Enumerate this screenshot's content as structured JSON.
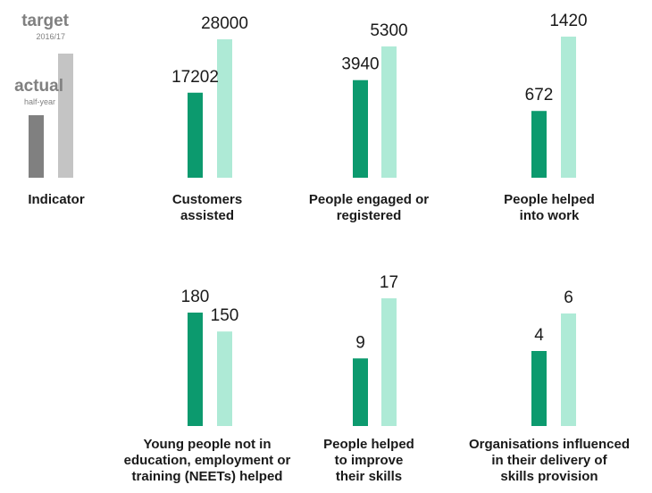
{
  "legend": {
    "actual_label": "actual",
    "actual_sub": "half-year",
    "target_label": "target",
    "target_sub": "2016/17",
    "indicator_label": "Indicator"
  },
  "colors": {
    "actual": "#0c9a6e",
    "target": "#aeead6",
    "legend_actual": "#808080",
    "legend_target": "#c4c4c4"
  },
  "chart_data": [
    {
      "type": "bar",
      "label": "Customers assisted",
      "label_lines": [
        "Customers",
        "assisted"
      ],
      "actual": 17202,
      "target": 28000
    },
    {
      "type": "bar",
      "label": "People engaged or registered",
      "label_lines": [
        "People engaged or",
        "registered"
      ],
      "actual": 3940,
      "target": 5300
    },
    {
      "type": "bar",
      "label": "People helped into work",
      "label_lines": [
        "People helped",
        "into work"
      ],
      "actual": 672,
      "target": 1420
    },
    {
      "type": "bar",
      "label": "Young people not in education, employment or training (NEETs) helped",
      "label_lines": [
        "Young people not in",
        "education, employment or",
        "training (NEETs) helped"
      ],
      "actual": 180,
      "target": 150
    },
    {
      "type": "bar",
      "label": "People helped to improve their skills",
      "label_lines": [
        "People helped",
        "to improve",
        "their skills"
      ],
      "actual": 9,
      "target": 17
    },
    {
      "type": "bar",
      "label": "Organisations influenced in their delivery of skills provision",
      "label_lines": [
        "Organisations influenced",
        "in their delivery of",
        "skills provision"
      ],
      "actual": 4,
      "target": 6
    }
  ]
}
